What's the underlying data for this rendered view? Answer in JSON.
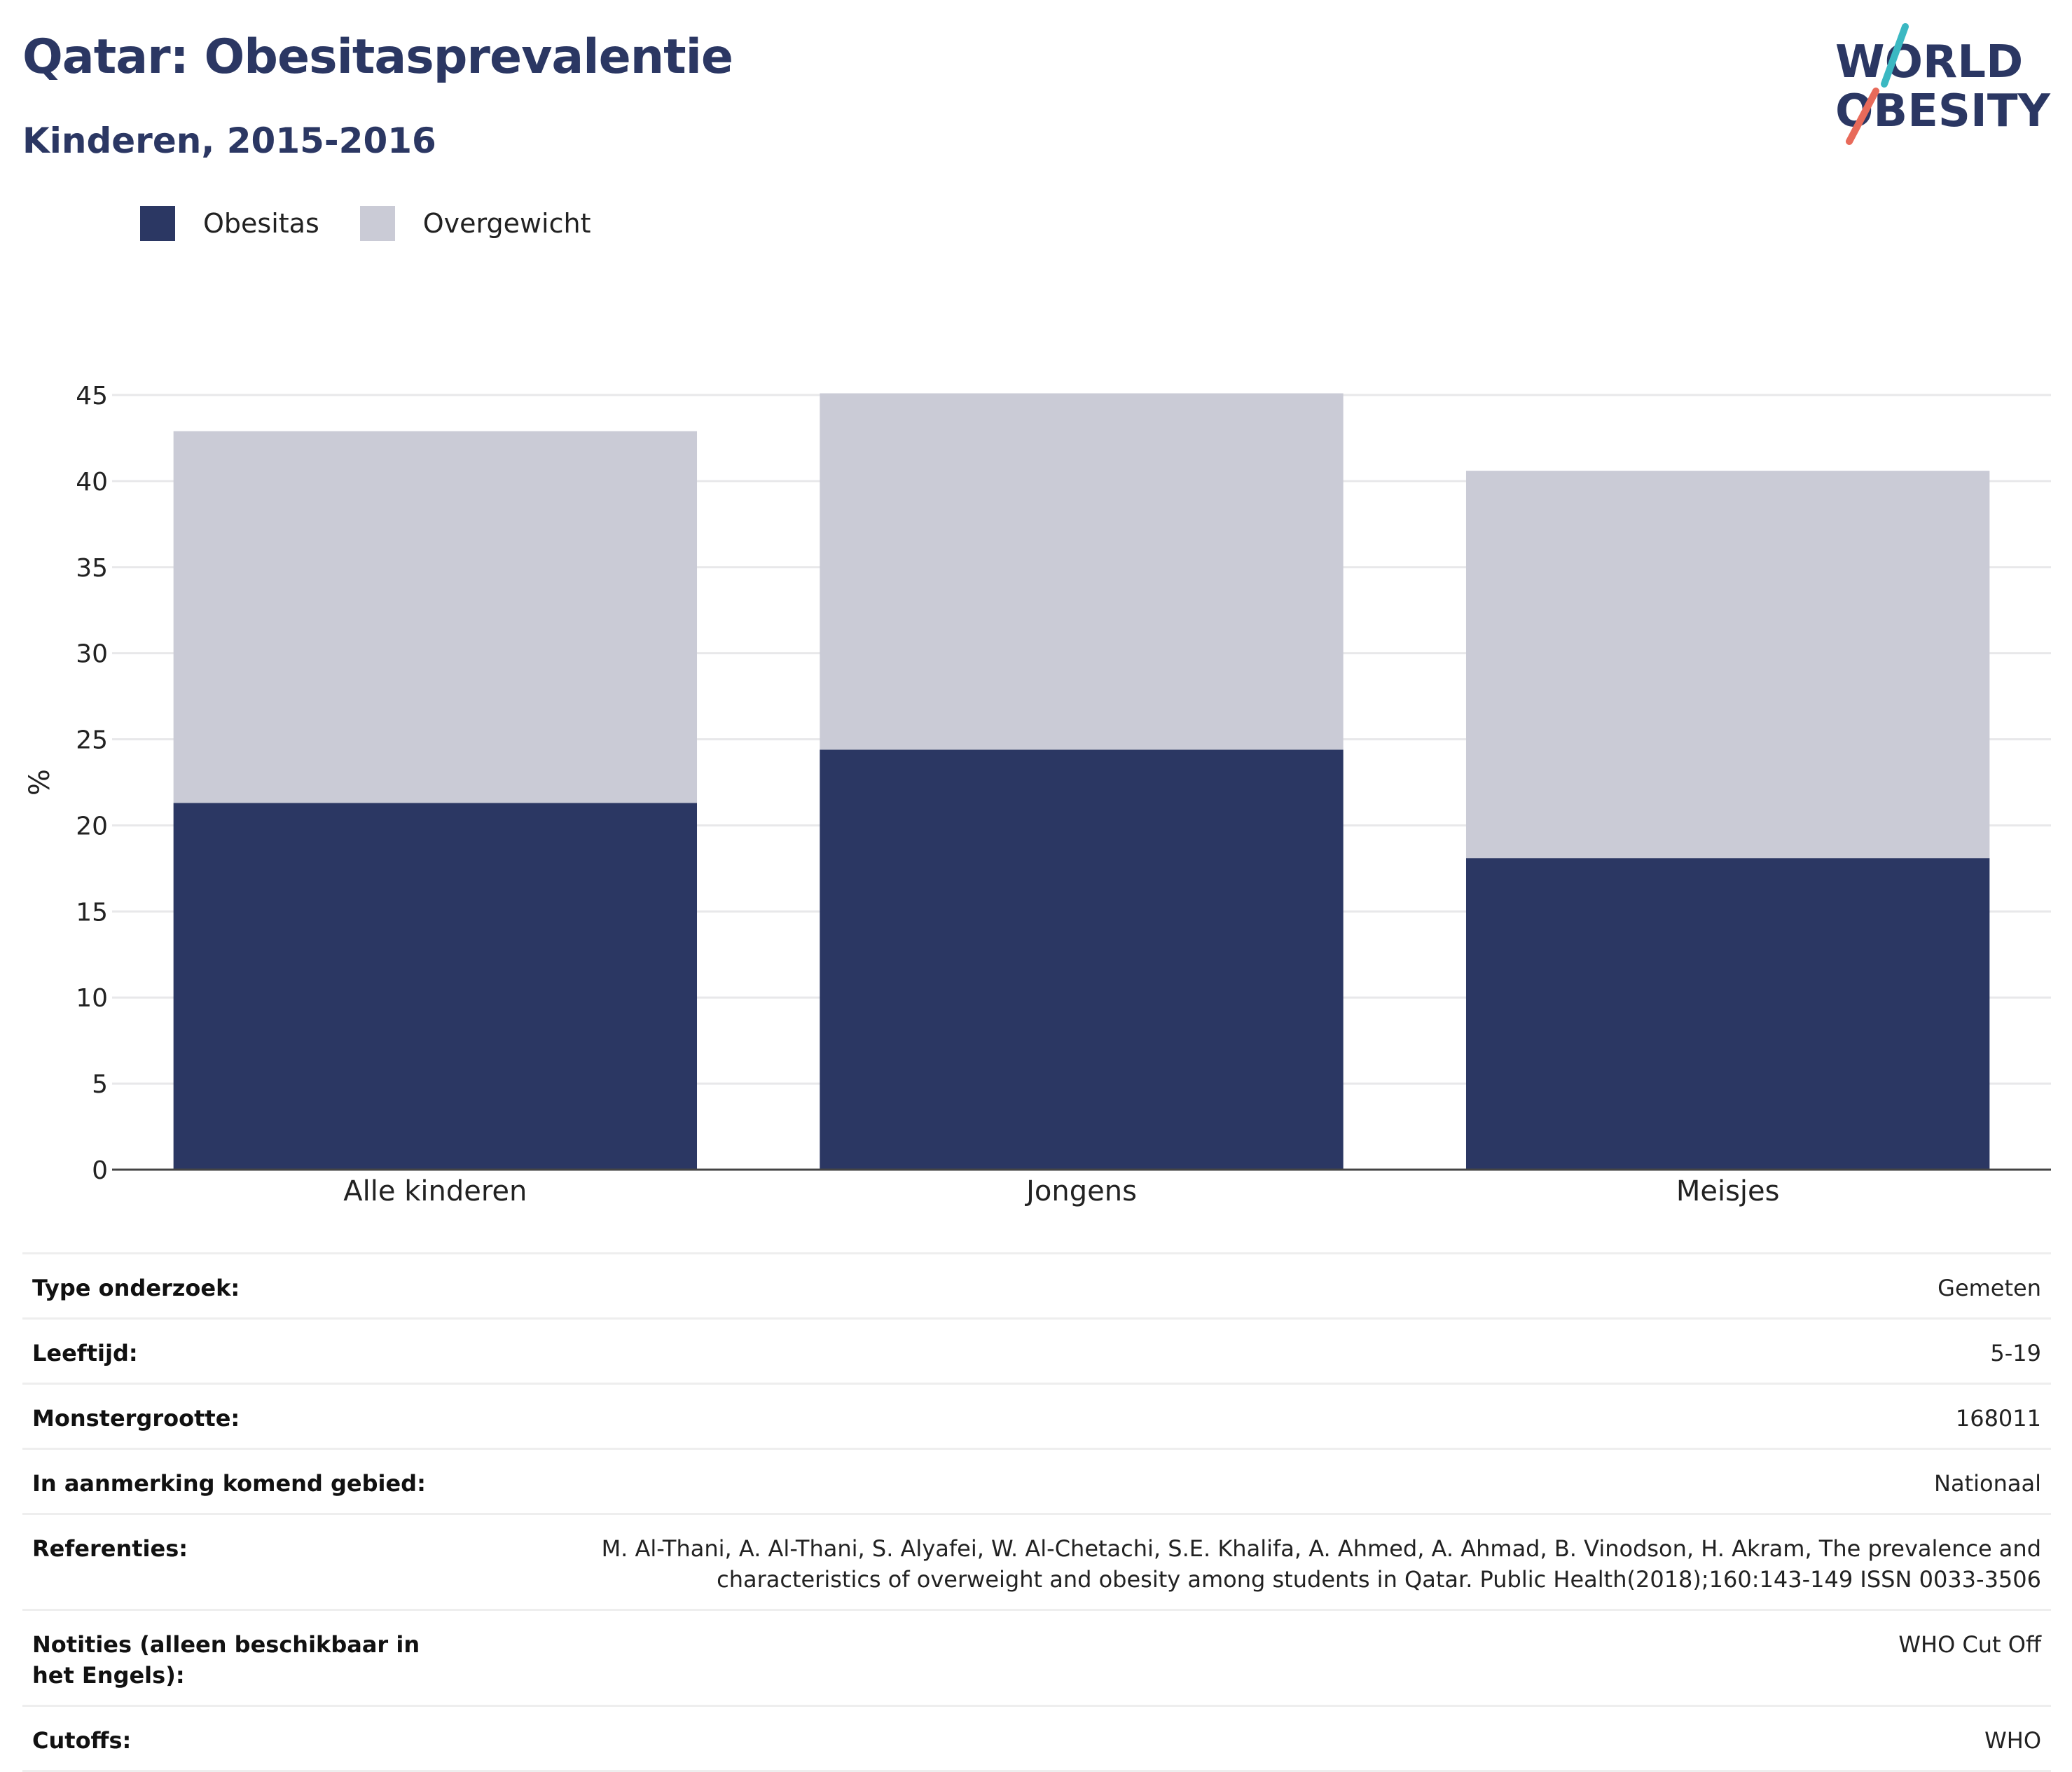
{
  "header": {
    "title": "Qatar: Obesitasprevalentie",
    "subtitle": "Kinderen, 2015-2016"
  },
  "logo": {
    "line1": "WORLD",
    "line2": "OBESITY",
    "text_color": "#2b3763",
    "accent_teal": "#3bb8c2",
    "accent_coral": "#e86a5a"
  },
  "legend": {
    "items": [
      {
        "label": "Obesitas",
        "color": "#2b3763"
      },
      {
        "label": "Overgewicht",
        "color": "#cacbd6"
      }
    ]
  },
  "chart_data": {
    "type": "bar",
    "stacked": true,
    "categories": [
      "Alle kinderen",
      "Jongens",
      "Meisjes"
    ],
    "series": [
      {
        "name": "Obesitas",
        "color": "#2b3763",
        "values": [
          21.3,
          24.4,
          18.1
        ]
      },
      {
        "name": "Overgewicht",
        "color": "#cacbd6",
        "values": [
          21.6,
          20.7,
          22.5
        ]
      }
    ],
    "ylabel": "%",
    "ylim": [
      0,
      45
    ],
    "yticks": [
      0,
      5,
      10,
      15,
      20,
      25,
      30,
      35,
      40,
      45
    ],
    "grid": true,
    "legend_position": "top-left"
  },
  "meta": {
    "rows": [
      {
        "label": "Type onderzoek:",
        "value": "Gemeten"
      },
      {
        "label": "Leeftijd:",
        "value": "5-19"
      },
      {
        "label": "Monstergrootte:",
        "value": "168011"
      },
      {
        "label": "In aanmerking komend gebied:",
        "value": "Nationaal"
      },
      {
        "label": "Referenties:",
        "value": "M. Al-Thani, A. Al-Thani, S. Alyafei, W. Al-Chetachi, S.E. Khalifa, A. Ahmed, A. Ahmad, B. Vinodson, H. Akram, The prevalence and characteristics of overweight and obesity among students in Qatar. Public Health(2018);160:143-149 ISSN 0033-3506"
      },
      {
        "label": "Notities (alleen beschikbaar in het Engels):",
        "value": "WHO Cut Off"
      },
      {
        "label": "Cutoffs:",
        "value": "WHO"
      }
    ]
  }
}
